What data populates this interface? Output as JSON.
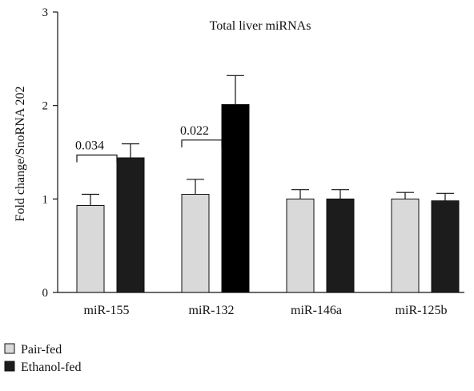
{
  "chart_data": {
    "type": "bar",
    "title": "Total liver miRNAs",
    "xlabel": "",
    "ylabel": "Fold change/SnoRNA 202",
    "ylim": [
      0,
      3
    ],
    "yticks": [
      "0",
      "1",
      "2",
      "3"
    ],
    "grid": false,
    "legend_position": "bottom-left",
    "categories": [
      "miR-155",
      "miR-132",
      "miR-146a",
      "miR-125b"
    ],
    "series": [
      {
        "name": "Pair-fed",
        "color": "#d9d9d9",
        "values": [
          0.93,
          1.05,
          1.0,
          1.0
        ],
        "errors": [
          0.12,
          0.16,
          0.1,
          0.07
        ]
      },
      {
        "name": "Ethanol-fed",
        "color": "#1c1c1c",
        "values": [
          1.44,
          2.01,
          1.0,
          0.98
        ],
        "errors": [
          0.15,
          0.31,
          0.1,
          0.08
        ]
      }
    ],
    "annotations": [
      {
        "category": "miR-155",
        "text": "0.034"
      },
      {
        "category": "miR-132",
        "text": "0.022"
      }
    ]
  }
}
